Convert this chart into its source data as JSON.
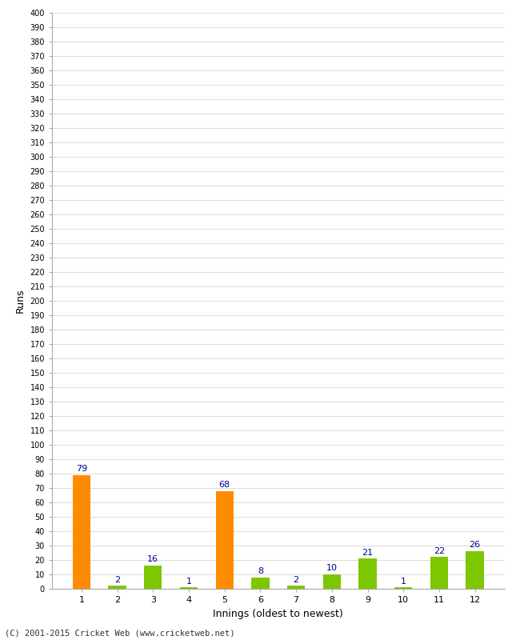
{
  "xlabel": "Innings (oldest to newest)",
  "ylabel": "Runs",
  "categories": [
    "1",
    "2",
    "3",
    "4",
    "5",
    "6",
    "7",
    "8",
    "9",
    "10",
    "11",
    "12"
  ],
  "values": [
    79,
    2,
    16,
    1,
    68,
    8,
    2,
    10,
    21,
    1,
    22,
    26
  ],
  "bar_colors": [
    "#FF8C00",
    "#7DC700",
    "#7DC700",
    "#7DC700",
    "#FF8C00",
    "#7DC700",
    "#7DC700",
    "#7DC700",
    "#7DC700",
    "#7DC700",
    "#7DC700",
    "#7DC700"
  ],
  "ylim": [
    0,
    400
  ],
  "ytick_step": 10,
  "value_label_color": "#00008B",
  "background_color": "#FFFFFF",
  "grid_color": "#CCCCCC",
  "footer": "(C) 2001-2015 Cricket Web (www.cricketweb.net)",
  "bar_width": 0.5
}
